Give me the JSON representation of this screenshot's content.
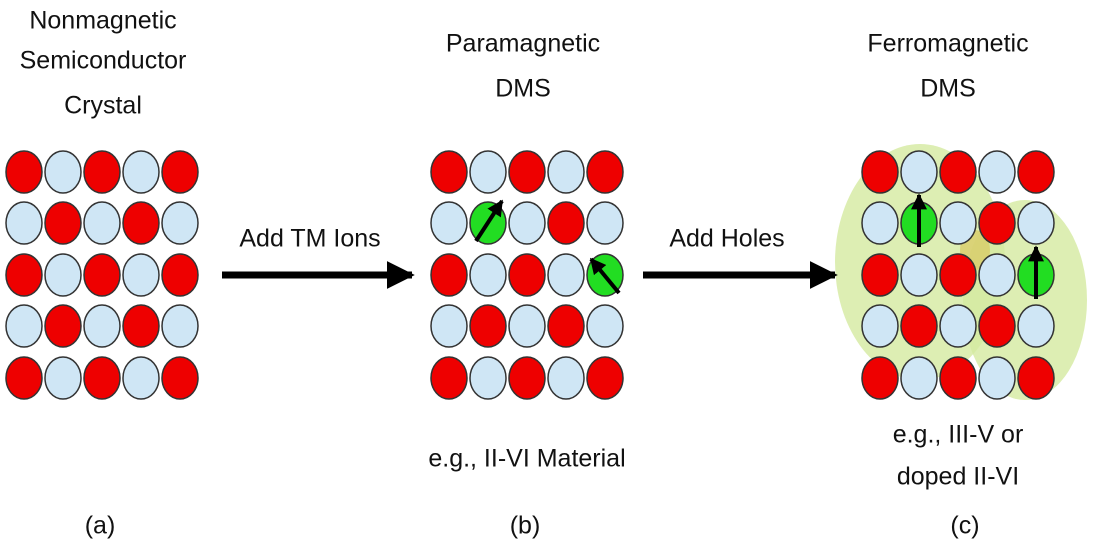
{
  "panels": [
    {
      "title": [
        "Nonmagnetic",
        "Semiconductor",
        "Crystal"
      ],
      "caption": [],
      "label": "(a)"
    },
    {
      "title": [
        "Paramagnetic",
        "DMS"
      ],
      "caption": [
        "e.g., II-VI Material"
      ],
      "label": "(b)"
    },
    {
      "title": [
        "Ferromagnetic",
        "DMS"
      ],
      "caption": [
        "e.g., III-V or",
        "doped II-VI"
      ],
      "label": "(c)"
    }
  ],
  "arrows": [
    {
      "label": "Add TM Ions"
    },
    {
      "label": "Add Holes"
    }
  ]
}
